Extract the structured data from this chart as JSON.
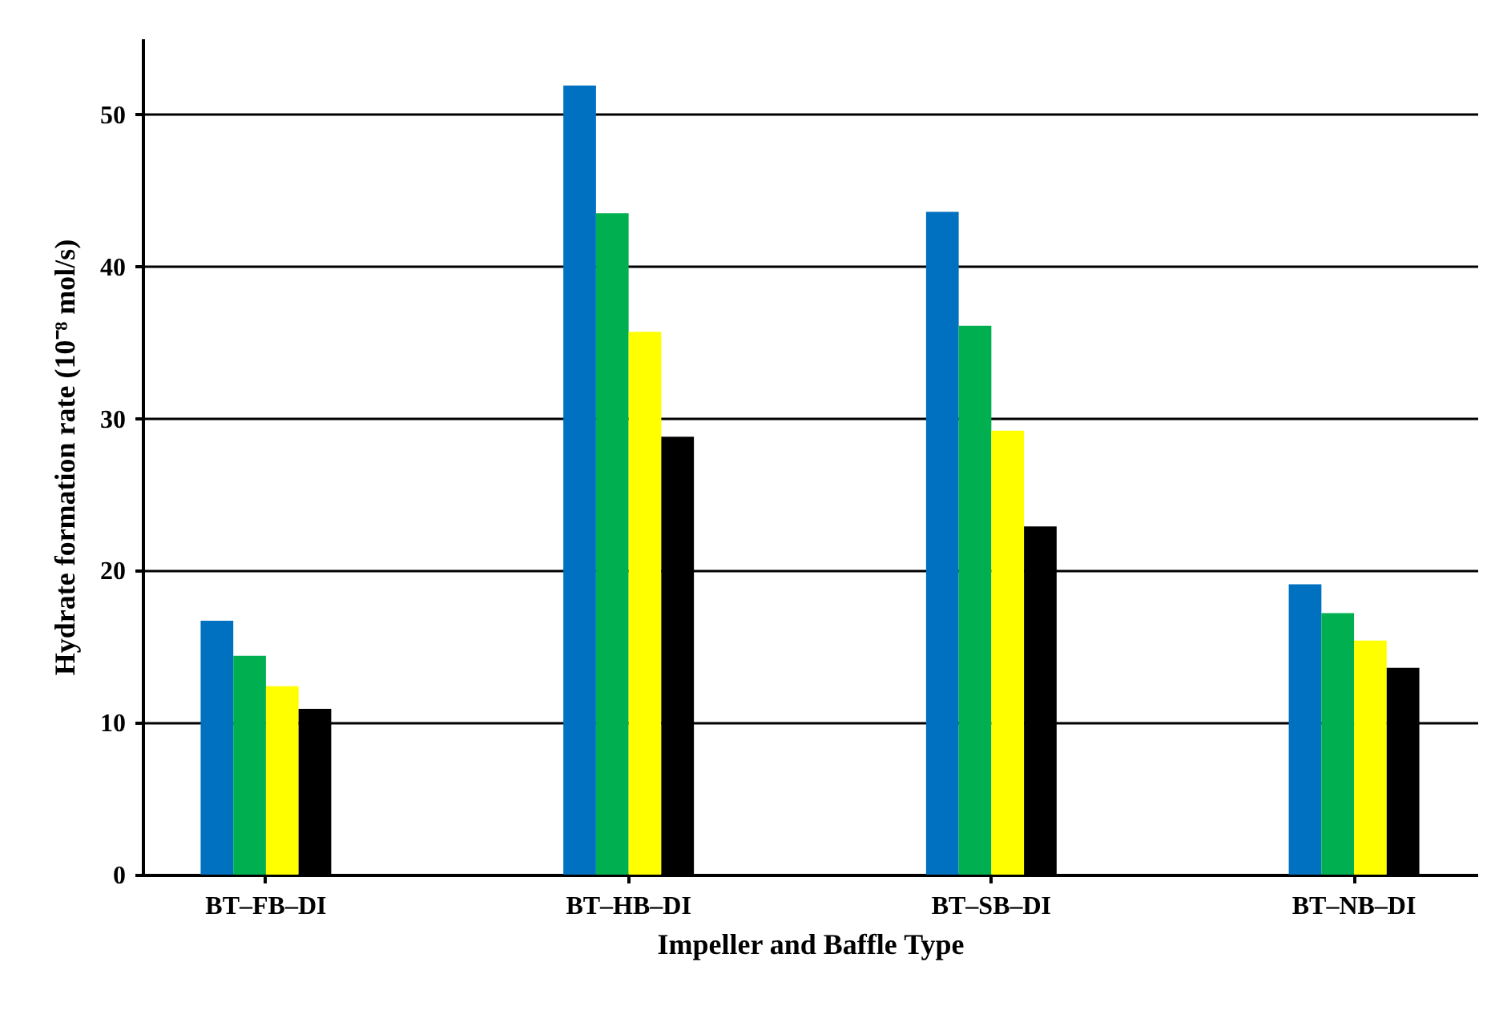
{
  "chart_data": {
    "type": "bar",
    "xlabel": "Impeller and Baffle Type",
    "ylabel": "Hydrate formation rate (10⁻⁸ mol/s)",
    "categories": [
      "BT–FB–DI",
      "BT–HB–DI",
      "BT–SB–DI",
      "BT–NB–DI"
    ],
    "series": [
      {
        "color": "#0070c0",
        "values": [
          16.7,
          51.9,
          43.6,
          19.1
        ]
      },
      {
        "color": "#00b050",
        "values": [
          14.4,
          43.5,
          36.1,
          17.2
        ]
      },
      {
        "color": "#ffff00",
        "values": [
          12.4,
          35.7,
          29.2,
          15.4
        ]
      },
      {
        "color": "#000000",
        "values": [
          10.9,
          28.8,
          22.9,
          13.6
        ]
      }
    ],
    "ylim": [
      0,
      55
    ],
    "yticks": [
      0,
      10,
      20,
      30,
      40,
      50
    ],
    "grid": "y",
    "legend": false
  }
}
